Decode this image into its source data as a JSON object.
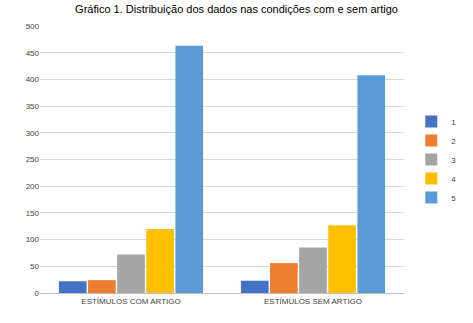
{
  "chart_data": {
    "type": "bar",
    "title": "Gráfico 1. Distribuição dos dados nas condições com e sem artigo",
    "categories": [
      "ESTÍMULOS COM ARTIGO",
      "ESTÍMULOS SEM ARTIGO"
    ],
    "series": [
      {
        "name": "1",
        "color": "#4472c4",
        "values": [
          22,
          23
        ]
      },
      {
        "name": "2",
        "color": "#ed7d31",
        "values": [
          24,
          56
        ]
      },
      {
        "name": "3",
        "color": "#a5a5a5",
        "values": [
          72,
          85
        ]
      },
      {
        "name": "4",
        "color": "#ffc000",
        "values": [
          120,
          127
        ]
      },
      {
        "name": "5",
        "color": "#5b9bd5",
        "values": [
          463,
          408
        ]
      }
    ],
    "ylim": [
      0,
      500
    ],
    "yticks": [
      0,
      50,
      100,
      150,
      200,
      250,
      300,
      350,
      400,
      450,
      500
    ],
    "grid": true,
    "legend": "right"
  }
}
